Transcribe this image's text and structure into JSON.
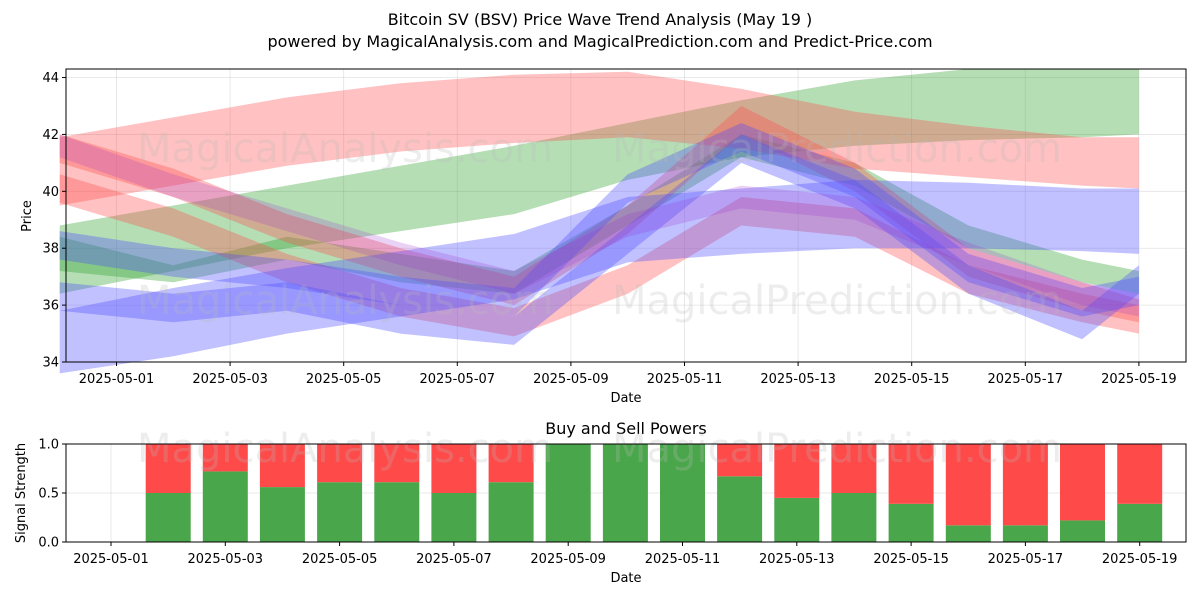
{
  "titles": {
    "main_line1": "Bitcoin SV (BSV) Price Wave Trend Analysis (May 19 )",
    "main_line2": "powered by MagicalAnalysis.com and MagicalPrediction.com and Predict-Price.com",
    "lower_chart": "Buy and Sell Powers"
  },
  "watermarks": [
    "MagicalAnalysis.com",
    "MagicalPrediction.com"
  ],
  "colors": {
    "green_band": "#2ca02c",
    "red_band": "#ff4d4d",
    "blue_band": "#4d4dff",
    "buy": "#4aa64a",
    "sell": "#ff4a4a"
  },
  "chart_data": [
    {
      "type": "area",
      "title": "",
      "xlabel": "Date",
      "ylabel": "Price",
      "ylim": [
        34,
        44.3
      ],
      "y_ticks": [
        34,
        36,
        38,
        40,
        42,
        44
      ],
      "x_ticks": [
        "2025-05-01",
        "2025-05-03",
        "2025-05-05",
        "2025-05-07",
        "2025-05-09",
        "2025-05-11",
        "2025-05-13",
        "2025-05-15",
        "2025-05-17",
        "2025-05-19"
      ],
      "grid": true,
      "bands": [
        {
          "color": "green",
          "x": [
            "2025-04-30",
            "2025-05-02",
            "2025-05-04",
            "2025-05-06",
            "2025-05-08",
            "2025-05-10",
            "2025-05-12",
            "2025-05-14",
            "2025-05-16",
            "2025-05-18",
            "2025-05-19"
          ],
          "upper": [
            38.8,
            39.5,
            40.2,
            40.9,
            41.6,
            42.4,
            43.2,
            43.9,
            44.3,
            44.3,
            44.3
          ],
          "lower": [
            36.4,
            37.2,
            38.0,
            38.6,
            39.2,
            40.4,
            41.2,
            41.6,
            41.8,
            41.9,
            42.0
          ]
        },
        {
          "color": "green",
          "x": [
            "2025-04-30",
            "2025-05-02",
            "2025-05-04",
            "2025-05-06",
            "2025-05-08",
            "2025-05-10",
            "2025-05-12",
            "2025-05-14",
            "2025-05-16",
            "2025-05-18",
            "2025-05-19"
          ],
          "upper": [
            38.4,
            37.4,
            38.4,
            37.8,
            37.2,
            39.5,
            42.0,
            41.0,
            38.8,
            37.6,
            37.2
          ],
          "lower": [
            37.2,
            36.8,
            37.6,
            36.8,
            36.4,
            38.8,
            41.2,
            40.2,
            38.0,
            36.8,
            36.4
          ]
        },
        {
          "color": "red",
          "x": [
            "2025-04-30",
            "2025-05-02",
            "2025-05-04",
            "2025-05-06",
            "2025-05-08",
            "2025-05-10",
            "2025-05-12",
            "2025-05-14",
            "2025-05-16",
            "2025-05-18",
            "2025-05-19"
          ],
          "upper": [
            41.9,
            42.6,
            43.3,
            43.8,
            44.1,
            44.2,
            43.6,
            42.8,
            42.3,
            41.9,
            41.9
          ],
          "lower": [
            39.5,
            40.2,
            40.9,
            41.4,
            41.7,
            41.9,
            41.5,
            40.8,
            40.5,
            40.2,
            40.1
          ]
        },
        {
          "color": "red",
          "x": [
            "2025-04-30",
            "2025-05-02",
            "2025-05-04",
            "2025-05-06",
            "2025-05-08",
            "2025-05-10",
            "2025-05-12",
            "2025-05-14",
            "2025-05-16",
            "2025-05-18",
            "2025-05-19"
          ],
          "upper": [
            42.0,
            40.8,
            39.2,
            38.0,
            37.0,
            39.5,
            43.0,
            41.0,
            38.0,
            36.8,
            36.2
          ],
          "lower": [
            41.0,
            39.8,
            38.2,
            37.0,
            36.0,
            38.5,
            42.0,
            40.0,
            37.0,
            35.8,
            35.4
          ]
        },
        {
          "color": "red",
          "x": [
            "2025-04-30",
            "2025-05-02",
            "2025-05-04",
            "2025-05-06",
            "2025-05-08",
            "2025-05-10",
            "2025-05-12",
            "2025-05-14",
            "2025-05-16",
            "2025-05-18",
            "2025-05-19"
          ],
          "upper": [
            40.6,
            39.4,
            37.8,
            36.6,
            35.9,
            37.4,
            39.8,
            39.4,
            37.4,
            36.4,
            36.0
          ],
          "lower": [
            39.6,
            38.4,
            36.8,
            35.6,
            34.9,
            36.4,
            38.8,
            38.4,
            36.4,
            35.4,
            35.0
          ]
        },
        {
          "color": "blue",
          "x": [
            "2025-04-30",
            "2025-05-02",
            "2025-05-04",
            "2025-05-06",
            "2025-05-08",
            "2025-05-10",
            "2025-05-12",
            "2025-05-14",
            "2025-05-16",
            "2025-05-18",
            "2025-05-19"
          ],
          "upper": [
            35.8,
            36.6,
            37.3,
            37.9,
            38.5,
            39.8,
            40.1,
            40.4,
            40.3,
            40.1,
            40.1
          ],
          "lower": [
            33.6,
            34.2,
            35.0,
            35.6,
            36.2,
            37.5,
            37.8,
            38.0,
            38.0,
            37.9,
            37.8
          ]
        },
        {
          "color": "blue",
          "x": [
            "2025-04-30",
            "2025-05-02",
            "2025-05-04",
            "2025-05-06",
            "2025-05-08",
            "2025-05-10",
            "2025-05-12",
            "2025-05-14",
            "2025-05-16",
            "2025-05-18",
            "2025-05-19"
          ],
          "upper": [
            36.8,
            36.4,
            36.8,
            36.0,
            35.6,
            38.8,
            42.0,
            40.4,
            37.4,
            35.8,
            37.4
          ],
          "lower": [
            35.8,
            35.4,
            35.8,
            35.0,
            34.6,
            37.8,
            41.0,
            39.4,
            36.4,
            34.8,
            36.4
          ]
        },
        {
          "color": "blue",
          "x": [
            "2025-04-30",
            "2025-05-02",
            "2025-05-04",
            "2025-05-06",
            "2025-05-08",
            "2025-05-10",
            "2025-05-12",
            "2025-05-14",
            "2025-05-16",
            "2025-05-18",
            "2025-05-19"
          ],
          "upper": [
            38.6,
            38.0,
            37.6,
            37.0,
            36.6,
            40.6,
            42.4,
            40.8,
            37.8,
            36.6,
            37.0
          ],
          "lower": [
            37.6,
            37.0,
            36.6,
            36.0,
            35.6,
            39.6,
            41.4,
            39.8,
            36.8,
            35.6,
            36.0
          ]
        },
        {
          "color": "purple",
          "x": [
            "2025-04-30",
            "2025-05-02",
            "2025-05-04",
            "2025-05-06",
            "2025-05-08",
            "2025-05-10",
            "2025-05-12",
            "2025-05-14",
            "2025-05-16",
            "2025-05-18",
            "2025-05-19"
          ],
          "upper": [
            42.0,
            40.6,
            39.4,
            38.2,
            37.2,
            39.2,
            40.2,
            39.8,
            38.2,
            36.8,
            36.4
          ],
          "lower": [
            41.2,
            39.8,
            38.6,
            37.4,
            36.4,
            38.4,
            39.4,
            39.0,
            37.4,
            36.0,
            35.6
          ]
        }
      ]
    },
    {
      "type": "bar",
      "title": "Buy and Sell Powers",
      "xlabel": "Date",
      "ylabel": "Signal Strength",
      "ylim": [
        0,
        1
      ],
      "y_ticks": [
        "0.0",
        "0.5",
        "1.0"
      ],
      "x_ticks": [
        "2025-05-01",
        "2025-05-03",
        "2025-05-05",
        "2025-05-07",
        "2025-05-09",
        "2025-05-11",
        "2025-05-13",
        "2025-05-15",
        "2025-05-17",
        "2025-05-19"
      ],
      "grid": true,
      "categories": [
        "2025-05-02",
        "2025-05-03",
        "2025-05-04",
        "2025-05-05",
        "2025-05-06",
        "2025-05-07",
        "2025-05-08",
        "2025-05-09",
        "2025-05-10",
        "2025-05-11",
        "2025-05-12",
        "2025-05-13",
        "2025-05-14",
        "2025-05-15",
        "2025-05-16",
        "2025-05-17",
        "2025-05-18",
        "2025-05-19"
      ],
      "series": [
        {
          "values": [
            0.5,
            0.72,
            0.56,
            0.61,
            0.61,
            0.5,
            0.61,
            1.0,
            1.0,
            1.0,
            0.67,
            0.45,
            0.5,
            0.39,
            0.17,
            0.17,
            0.22,
            0.39
          ]
        },
        {
          "values": [
            0.5,
            0.28,
            0.44,
            0.39,
            0.39,
            0.5,
            0.39,
            0.0,
            0.0,
            0.0,
            0.33,
            0.55,
            0.5,
            0.61,
            0.83,
            0.83,
            0.78,
            0.61
          ]
        }
      ]
    }
  ]
}
